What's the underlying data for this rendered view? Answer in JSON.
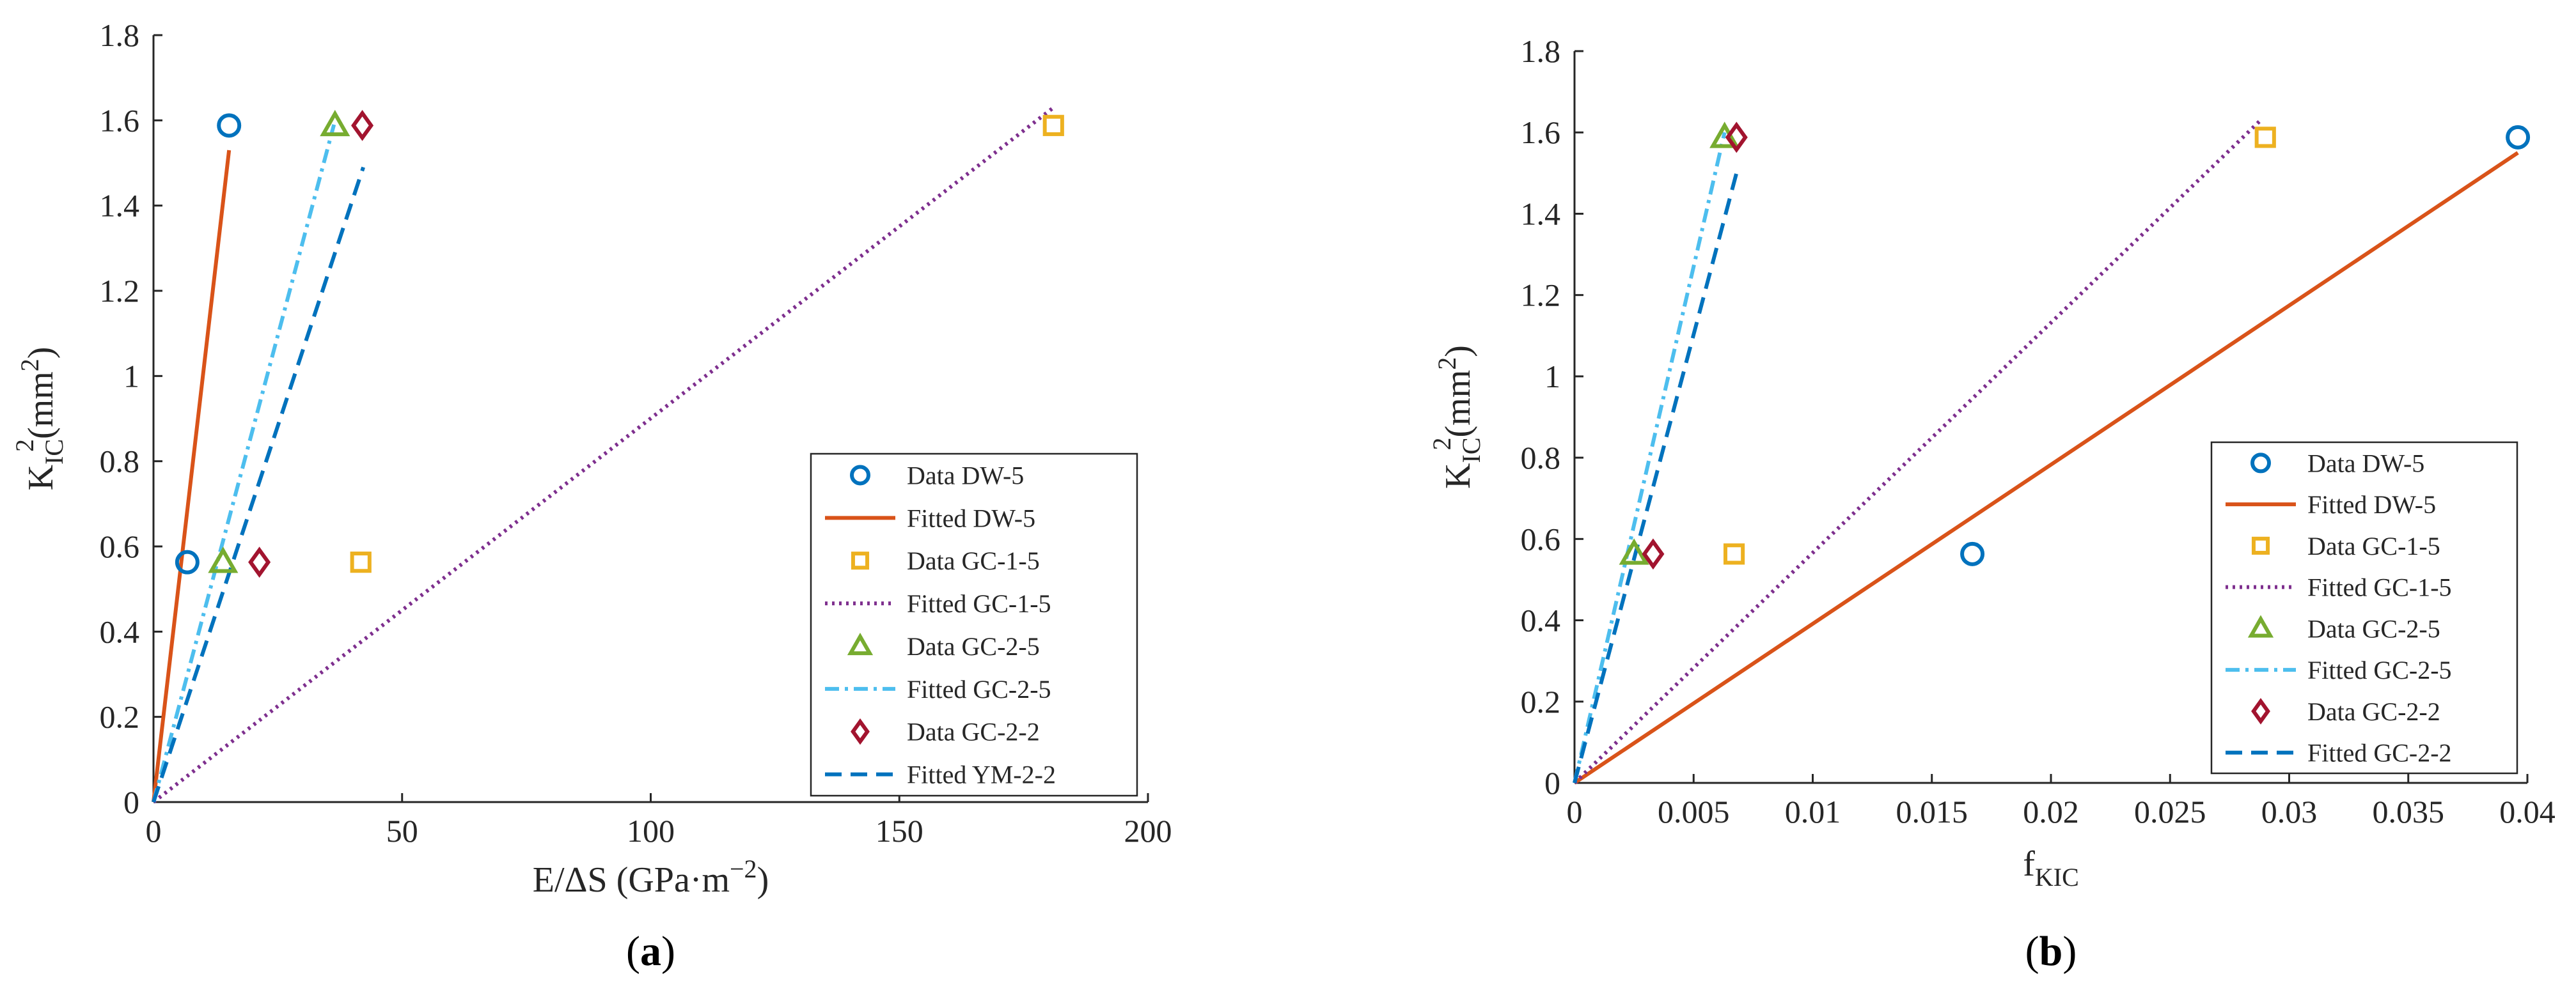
{
  "colors": {
    "DW": "#0072BD",
    "fitDW": "#D95319",
    "GC1": "#EDB120",
    "fitGC1": "#7E2F8E",
    "GC2": "#77AC30",
    "fitGC2": "#4DBEEE",
    "GC22": "#A2142F",
    "fitGC22": "#0072BD"
  },
  "chart_data": [
    {
      "type": "scatter",
      "panel_label": "a",
      "xlabel": "E/ΔS (GPa·m",
      "xlabel_sup": "−2",
      "xlabel_end": ")",
      "ylabel": "K",
      "ylabel_sub": "IC",
      "ylabel_sup": "2",
      "ylabel_end": "(mm",
      "ylabel_unit_sup": "2",
      "ylabel_close": ")",
      "xlim": [
        0,
        200
      ],
      "ylim": [
        0,
        1.8
      ],
      "xticks": [
        "0",
        "50",
        "100",
        "150",
        "200"
      ],
      "xtick_values": [
        0,
        50,
        100,
        150,
        200
      ],
      "yticks": [
        "0",
        "0.2",
        "0.4",
        "0.6",
        "0.8",
        "1",
        "1.2",
        "1.4",
        "1.6",
        "1.8"
      ],
      "ytick_values": [
        0,
        0.2,
        0.4,
        0.6,
        0.8,
        1.0,
        1.2,
        1.4,
        1.6,
        1.8
      ],
      "legend_position": "lower-right",
      "series": [
        {
          "name": "Data DW-5",
          "kind": "marker",
          "marker": "circle",
          "color_key": "DW",
          "points": [
            [
              6.8,
              0.563
            ],
            [
              15.2,
              1.588
            ]
          ]
        },
        {
          "name": "Fitted DW-5",
          "kind": "line",
          "dash": "solid",
          "color_key": "fitDW",
          "points": [
            [
              0,
              0
            ],
            [
              15.2,
              1.53
            ]
          ]
        },
        {
          "name": "Data GC-1-5",
          "kind": "marker",
          "marker": "square",
          "color_key": "GC1",
          "points": [
            [
              41.7,
              0.563
            ],
            [
              181,
              1.588
            ]
          ]
        },
        {
          "name": "Fitted GC-1-5",
          "kind": "line",
          "dash": "dotted",
          "color_key": "fitGC1",
          "points": [
            [
              0,
              0
            ],
            [
              181,
              1.63
            ]
          ]
        },
        {
          "name": "Data GC-2-5",
          "kind": "marker",
          "marker": "triangle",
          "color_key": "GC2",
          "points": [
            [
              14,
              0.563
            ],
            [
              36.5,
              1.588
            ]
          ]
        },
        {
          "name": "Fitted GC-2-5",
          "kind": "line",
          "dash": "dashdot",
          "color_key": "fitGC2",
          "points": [
            [
              0,
              0
            ],
            [
              36.3,
              1.59
            ]
          ]
        },
        {
          "name": "Data GC-2-2",
          "kind": "marker",
          "marker": "diamond",
          "color_key": "GC22",
          "points": [
            [
              21.3,
              0.563
            ],
            [
              42,
              1.588
            ]
          ]
        },
        {
          "name": "Fitted YM-2-2",
          "kind": "line",
          "dash": "dashed",
          "color_key": "fitGC22",
          "points": [
            [
              0,
              0
            ],
            [
              42.2,
              1.49
            ]
          ]
        }
      ]
    },
    {
      "type": "scatter",
      "panel_label": "b",
      "xlabel": "f",
      "xlabel_sub": "KIC",
      "ylabel": "K",
      "ylabel_sub": "IC",
      "ylabel_sup": "2",
      "ylabel_end": "(mm",
      "ylabel_unit_sup": "2",
      "ylabel_close": ")",
      "xlim": [
        0,
        0.04
      ],
      "ylim": [
        0,
        1.8
      ],
      "xticks": [
        "0",
        "0.005",
        "0.01",
        "0.015",
        "0.02",
        "0.025",
        "0.03",
        "0.035",
        "0.04"
      ],
      "xtick_values": [
        0,
        0.005,
        0.01,
        0.015,
        0.02,
        0.025,
        0.03,
        0.035,
        0.04
      ],
      "yticks": [
        "0",
        "0.2",
        "0.4",
        "0.6",
        "0.8",
        "1",
        "1.2",
        "1.4",
        "1.6",
        "1.8"
      ],
      "ytick_values": [
        0,
        0.2,
        0.4,
        0.6,
        0.8,
        1.0,
        1.2,
        1.4,
        1.6,
        1.8
      ],
      "legend_position": "lower-right",
      "series": [
        {
          "name": "Data DW-5",
          "kind": "marker",
          "marker": "circle",
          "color_key": "DW",
          "points": [
            [
              0.0167,
              0.563
            ],
            [
              0.0396,
              1.588
            ]
          ]
        },
        {
          "name": "Fitted DW-5",
          "kind": "line",
          "dash": "solid",
          "color_key": "fitDW",
          "points": [
            [
              0,
              0
            ],
            [
              0.0396,
              1.55
            ]
          ]
        },
        {
          "name": "Data GC-1-5",
          "kind": "marker",
          "marker": "square",
          "color_key": "GC1",
          "points": [
            [
              0.0067,
              0.563
            ],
            [
              0.029,
              1.588
            ]
          ]
        },
        {
          "name": "Fitted GC-1-5",
          "kind": "line",
          "dash": "dotted",
          "color_key": "fitGC1",
          "points": [
            [
              0,
              0
            ],
            [
              0.0288,
              1.63
            ]
          ]
        },
        {
          "name": "Data GC-2-5",
          "kind": "marker",
          "marker": "triangle",
          "color_key": "GC2",
          "points": [
            [
              0.0025,
              0.563
            ],
            [
              0.0063,
              1.588
            ]
          ]
        },
        {
          "name": "Fitted GC-2-5",
          "kind": "line",
          "dash": "dashdot",
          "color_key": "fitGC2",
          "points": [
            [
              0,
              0
            ],
            [
              0.0063,
              1.6
            ]
          ]
        },
        {
          "name": "Data GC-2-2",
          "kind": "marker",
          "marker": "diamond",
          "color_key": "GC22",
          "points": [
            [
              0.0033,
              0.563
            ],
            [
              0.0068,
              1.588
            ]
          ]
        },
        {
          "name": "Fitted GC-2-2",
          "kind": "line",
          "dash": "dashed",
          "color_key": "fitGC22",
          "points": [
            [
              0,
              0
            ],
            [
              0.0068,
              1.5
            ]
          ]
        }
      ]
    }
  ]
}
